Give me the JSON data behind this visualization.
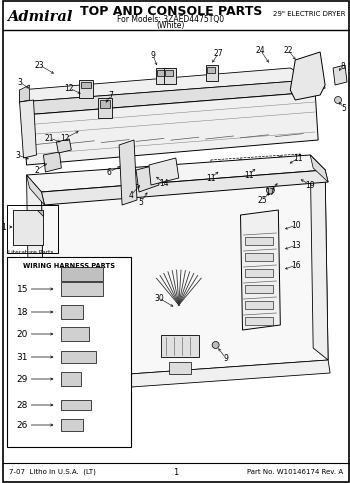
{
  "title": "TOP AND CONSOLE PARTS",
  "subtitle1": "For Models: 3ZAED4475TQ0",
  "subtitle2": "(White)",
  "brand": "Admiral",
  "appliance_type": "29\" ELECTRIC DRYER",
  "footer_left": "7-07  Litho in U.S.A.  (LT)",
  "footer_center": "1",
  "footer_right": "Part No. W10146174 Rev. A",
  "wiring_box_title": "WIRING HARNESS PARTS",
  "wiring_items": [
    "15",
    "18",
    "20",
    "31",
    "29",
    "28",
    "26"
  ],
  "bg_color": "#ffffff",
  "lit_label": "Literature Parts"
}
